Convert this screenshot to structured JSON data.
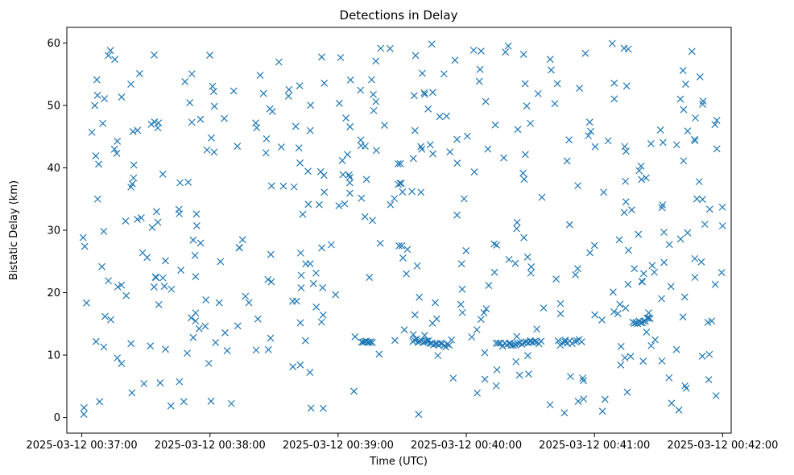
{
  "chart_data": {
    "type": "scatter",
    "title": "Detections in Delay",
    "xlabel": "Time (UTC)",
    "ylabel": "Bistatic Delay (km)",
    "marker": "x",
    "color": "#1f77b4",
    "grid": false,
    "legend": null,
    "xlim": [
      "2025-03-12 00:36:53",
      "2025-03-12 00:42:04"
    ],
    "ylim": [
      -2.5,
      62.5
    ],
    "xticks": [
      "2025-03-12 00:37:00",
      "2025-03-12 00:38:00",
      "2025-03-12 00:39:00",
      "2025-03-12 00:40:00",
      "2025-03-12 00:41:00",
      "2025-03-12 00:42:00"
    ],
    "yticks": [
      0,
      10,
      20,
      30,
      40,
      50,
      60
    ],
    "seed": 20250312
  }
}
